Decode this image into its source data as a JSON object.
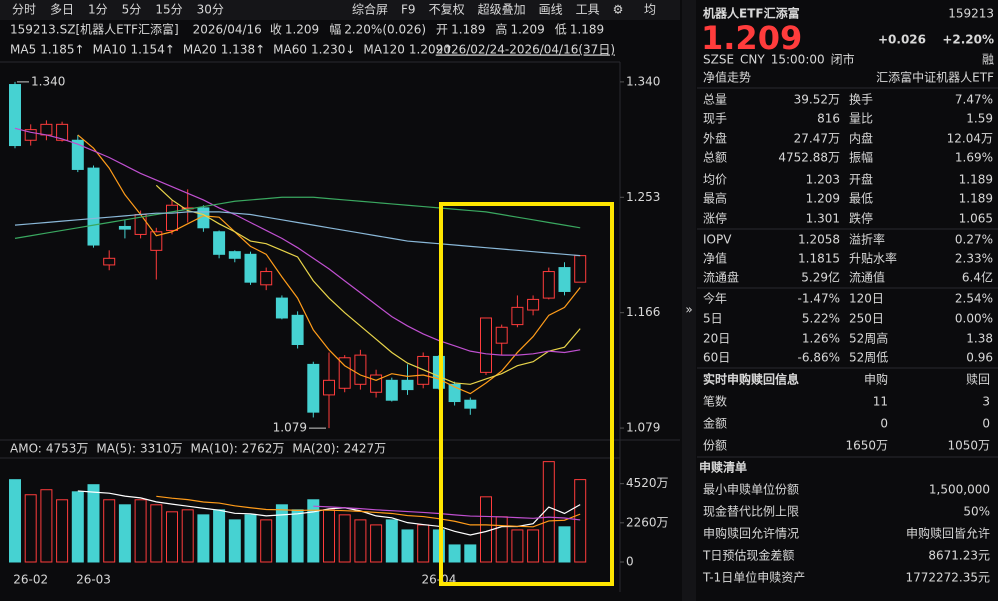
{
  "toolbar": {
    "left": [
      "分时",
      "多日",
      "1分",
      "5分",
      "15分",
      "30分"
    ],
    "right": [
      "综合屏",
      "F9",
      "不复权",
      "超级叠加",
      "画线",
      "工具"
    ],
    "end": "均"
  },
  "info_line": {
    "symbol": "159213.SZ[机器人ETF汇添富]",
    "date": "2026/04/16",
    "items": [
      [
        "收",
        "1.209"
      ],
      [
        "幅",
        "2.20%(0.026)"
      ],
      [
        "开",
        "1.189"
      ],
      [
        "高",
        "1.209"
      ],
      [
        "低",
        "1.189"
      ]
    ]
  },
  "chart_data": [
    {
      "type": "candlestick",
      "range_label": "2026/02/24-2026/04/16(37日)",
      "max_label": "1.340",
      "min_label": "1.079",
      "up_color": "#ff3c3c",
      "down_color": "#46d2d2",
      "ylim": [
        1.07,
        1.355
      ],
      "yticks": [
        {
          "value": 1.34,
          "label": "1.340"
        },
        1.253,
        1.166,
        1.079
      ],
      "open": [
        1.338,
        1.296,
        1.3,
        1.296,
        1.296,
        1.275,
        1.202,
        1.231,
        1.225,
        1.213,
        1.228,
        1.245,
        1.245,
        1.227,
        1.212,
        1.21,
        1.187,
        1.177,
        1.164,
        1.127,
        1.104,
        1.109,
        1.112,
        1.106,
        1.115,
        1.115,
        1.112,
        1.133,
        1.112,
        1.1,
        1.121,
        1.143,
        1.157,
        1.168,
        1.177,
        1.2,
        1.189
      ],
      "high": [
        1.34,
        1.308,
        1.311,
        1.31,
        1.3,
        1.277,
        1.213,
        1.236,
        1.243,
        1.23,
        1.251,
        1.259,
        1.247,
        1.228,
        1.213,
        1.212,
        1.2,
        1.179,
        1.167,
        1.129,
        1.136,
        1.134,
        1.138,
        1.123,
        1.117,
        1.127,
        1.136,
        1.134,
        1.114,
        1.102,
        1.162,
        1.157,
        1.179,
        1.179,
        1.2,
        1.204,
        1.209
      ],
      "low": [
        1.29,
        1.292,
        1.296,
        1.295,
        1.272,
        1.215,
        1.198,
        1.222,
        1.222,
        1.191,
        1.225,
        1.234,
        1.227,
        1.207,
        1.204,
        1.187,
        1.183,
        1.161,
        1.139,
        1.087,
        1.079,
        1.106,
        1.108,
        1.102,
        1.099,
        1.104,
        1.109,
        1.108,
        1.096,
        1.089,
        1.119,
        1.134,
        1.155,
        1.164,
        1.176,
        1.179,
        1.189
      ],
      "close": [
        1.292,
        1.304,
        1.308,
        1.308,
        1.274,
        1.217,
        1.207,
        1.229,
        1.24,
        1.227,
        1.247,
        1.245,
        1.23,
        1.21,
        1.207,
        1.189,
        1.197,
        1.162,
        1.142,
        1.091,
        1.115,
        1.132,
        1.134,
        1.119,
        1.1,
        1.108,
        1.133,
        1.109,
        1.099,
        1.094,
        1.162,
        1.155,
        1.17,
        1.176,
        1.197,
        1.182,
        1.209
      ],
      "series": [
        {
          "name": "MA5",
          "label": "1.185↑",
          "color": "#ff9c1a",
          "values": [
            null,
            null,
            null,
            null,
            1.3,
            1.29,
            1.275,
            1.255,
            1.24,
            1.224,
            1.227,
            1.233,
            1.239,
            1.238,
            1.227,
            1.216,
            1.21,
            1.193,
            1.177,
            1.153,
            1.138,
            1.126,
            1.119,
            1.115,
            1.12,
            1.118,
            1.119,
            1.116,
            1.11,
            1.105,
            1.113,
            1.122,
            1.136,
            1.148,
            1.164,
            1.17,
            1.185
          ]
        },
        {
          "name": "MA10",
          "label": "1.154↑",
          "color": "#e8d44a",
          "values": [
            null,
            null,
            null,
            null,
            null,
            null,
            null,
            null,
            null,
            1.262,
            1.251,
            1.243,
            1.24,
            1.233,
            1.227,
            1.22,
            1.218,
            1.213,
            1.208,
            1.19,
            1.177,
            1.166,
            1.156,
            1.146,
            1.136,
            1.128,
            1.123,
            1.118,
            1.113,
            1.112,
            1.116,
            1.12,
            1.126,
            1.129,
            1.137,
            1.14,
            1.154
          ]
        },
        {
          "name": "MA20",
          "label": "1.138↑",
          "color": "#c050d0",
          "values": [
            1.305,
            1.302,
            1.3,
            1.297,
            1.293,
            1.288,
            1.283,
            1.277,
            1.271,
            1.266,
            1.261,
            1.256,
            1.251,
            1.245,
            1.24,
            1.234,
            1.228,
            1.222,
            1.215,
            1.207,
            1.199,
            1.19,
            1.181,
            1.172,
            1.163,
            1.156,
            1.15,
            1.145,
            1.141,
            1.137,
            1.135,
            1.134,
            1.134,
            1.135,
            1.137,
            1.136,
            1.138
          ]
        },
        {
          "name": "MA60",
          "label": "1.230↓",
          "color": "#3aa860",
          "values": [
            1.222,
            1.224,
            1.226,
            1.228,
            1.23,
            1.232,
            1.234,
            1.236,
            1.238,
            1.24,
            1.242,
            1.244,
            1.246,
            1.248,
            1.25,
            1.251,
            1.252,
            1.253,
            1.253,
            1.253,
            1.252,
            1.251,
            1.25,
            1.249,
            1.248,
            1.247,
            1.246,
            1.245,
            1.244,
            1.243,
            1.242,
            1.24,
            1.238,
            1.236,
            1.234,
            1.232,
            1.23
          ]
        },
        {
          "name": "MA120",
          "label": "1.209↑",
          "color": "#8ab8d8",
          "values": [
            1.232,
            1.233,
            1.234,
            1.235,
            1.236,
            1.237,
            1.238,
            1.239,
            1.24,
            1.241,
            1.241,
            1.242,
            1.242,
            1.242,
            1.241,
            1.24,
            1.238,
            1.236,
            1.234,
            1.232,
            1.23,
            1.228,
            1.226,
            1.224,
            1.222,
            1.22,
            1.219,
            1.218,
            1.217,
            1.216,
            1.215,
            1.214,
            1.213,
            1.212,
            1.211,
            1.21,
            1.209
          ]
        }
      ]
    },
    {
      "type": "bar",
      "ylim": [
        0,
        6000
      ],
      "yticks": [
        {
          "value": 4520,
          "label": "4520万"
        },
        {
          "value": 2260,
          "label": "2260万"
        },
        0
      ],
      "amo_name": "AMO:",
      "amo_label": "4753万",
      "categories": [
        null,
        "26-02",
        null,
        null,
        null,
        "26-03",
        null,
        null,
        null,
        null,
        null,
        null,
        null,
        null,
        null,
        null,
        null,
        null,
        null,
        null,
        null,
        null,
        null,
        null,
        null,
        null,
        null,
        "26-04",
        null,
        null,
        null,
        null,
        null,
        null,
        null,
        null,
        null
      ],
      "values": [
        4750,
        3880,
        4170,
        3590,
        4050,
        4460,
        3590,
        3300,
        3590,
        3300,
        2895,
        3010,
        2720,
        3010,
        2430,
        2720,
        2430,
        3300,
        3010,
        3590,
        3010,
        2720,
        2430,
        2140,
        2430,
        1850,
        2140,
        1850,
        985,
        985,
        3760,
        2610,
        1850,
        1850,
        5790,
        2030,
        4753
      ],
      "series": [
        {
          "name": "MA(5):",
          "label": "3310万",
          "color": "#ffffff",
          "values": [
            null,
            null,
            null,
            null,
            4100,
            4030,
            3970,
            3800,
            3700,
            3470,
            3340,
            3220,
            3100,
            2990,
            2810,
            2780,
            2660,
            2720,
            2780,
            2890,
            3070,
            3130,
            2950,
            2660,
            2550,
            2270,
            2160,
            2060,
            1770,
            1560,
            1760,
            2040,
            2050,
            2210,
            3170,
            2800,
            3310
          ]
        },
        {
          "name": "MA(10):",
          "label": "2762万",
          "color": "#ff9c1a",
          "values": [
            null,
            null,
            null,
            null,
            null,
            null,
            null,
            null,
            null,
            3790,
            3680,
            3600,
            3460,
            3400,
            3240,
            3130,
            3030,
            3010,
            2980,
            2990,
            2990,
            2960,
            2920,
            2860,
            2800,
            2680,
            2620,
            2500,
            2350,
            2140,
            2140,
            2100,
            2060,
            2030,
            2370,
            2410,
            2762
          ]
        },
        {
          "name": "MA(20):",
          "label": "2427万",
          "color": "#c050d0",
          "values": [
            null,
            null,
            null,
            null,
            null,
            null,
            null,
            null,
            null,
            null,
            null,
            null,
            null,
            null,
            null,
            null,
            null,
            null,
            null,
            3220,
            3180,
            3130,
            3080,
            3010,
            2960,
            2910,
            2860,
            2800,
            2720,
            2650,
            2630,
            2600,
            2560,
            2520,
            2590,
            2540,
            2427
          ]
        }
      ]
    }
  ],
  "panel": {
    "name": "机器人ETF汇添富",
    "code": "159213",
    "price": "1.209",
    "change": "+0.026",
    "pct": "+2.20%",
    "meta": [
      "SZSE",
      "CNY",
      "15:00:00",
      "闭市"
    ],
    "badge": "融",
    "nav_title": "净值走势",
    "nav_fund": "汇添富中证机器人ETF",
    "stats": [
      {
        "cells": [
          "总量",
          "39.52万",
          "换手",
          "7.47%"
        ],
        "colors": [
          "#e6e6e6",
          "#e6e6e6"
        ]
      },
      {
        "cells": [
          "现手",
          "816",
          "量比",
          "1.59"
        ],
        "colors": [
          "#e6e6e6",
          "#e6e6e6"
        ]
      },
      {
        "cells": [
          "外盘",
          "27.47万",
          "内盘",
          "12.04万"
        ],
        "colors": [
          "#ff3c3c",
          "#26c826"
        ]
      },
      {
        "cells": [
          "总额",
          "4752.88万",
          "振幅",
          "1.69%"
        ],
        "colors": [
          "#e6e6e6",
          "#e6e6e6"
        ]
      },
      {
        "cells": [
          "均价",
          "1.203",
          "开盘",
          "1.189"
        ],
        "colors": [
          "#ff3c3c",
          "#ff3c3c"
        ]
      },
      {
        "cells": [
          "最高",
          "1.209",
          "最低",
          "1.189"
        ],
        "colors": [
          "#ff3c3c",
          "#ff3c3c"
        ]
      },
      {
        "cells": [
          "涨停",
          "1.301",
          "跌停",
          "1.065"
        ],
        "colors": [
          "#ff3c3c",
          "#26c826"
        ]
      },
      {
        "cells": [
          "IOPV",
          "1.2058",
          "溢折率",
          "0.27%"
        ],
        "colors": [
          "#e6e6e6",
          "#ff3c3c"
        ]
      },
      {
        "cells": [
          "净值",
          "1.1815",
          "升贴水率",
          "2.33%"
        ],
        "colors": [
          "#26c826",
          "#ff3c3c"
        ]
      },
      {
        "cells": [
          "流通盘",
          "5.29亿",
          "流通值",
          "6.4亿"
        ],
        "colors": [
          "#e6e6e6",
          "#e6e6e6"
        ]
      },
      {
        "cells": [
          "今年",
          "-1.47%",
          "120日",
          "2.54%"
        ],
        "colors": [
          "#26c826",
          "#ff3c3c"
        ]
      },
      {
        "cells": [
          "5日",
          "5.22%",
          "250日",
          "0.00%"
        ],
        "colors": [
          "#ff3c3c",
          "#e6e6e6"
        ]
      },
      {
        "cells": [
          "20日",
          "1.26%",
          "52周高",
          "1.38"
        ],
        "colors": [
          "#ff3c3c",
          "#e6e6e6"
        ]
      },
      {
        "cells": [
          "60日",
          "-6.86%",
          "52周低",
          "0.96"
        ],
        "colors": [
          "#26c826",
          "#e6e6e6"
        ]
      }
    ],
    "subscription": {
      "title": "实时申购赎回信息",
      "cols": [
        "申购",
        "赎回"
      ],
      "rows": [
        [
          "笔数",
          "11",
          "3"
        ],
        [
          "金额",
          "0",
          "0"
        ],
        [
          "份额",
          "1650万",
          "1050万"
        ]
      ]
    },
    "list": {
      "title": "申赎清单",
      "rows": [
        [
          "最小申赎单位份额",
          "1,500,000"
        ],
        [
          "现金替代比例上限",
          "50%"
        ],
        [
          "申购赎回允许情况",
          "申购赎回皆允许"
        ],
        [
          "T日预估现金差额",
          "8671.23元"
        ],
        [
          "T-1日单位申赎资产",
          "1772272.35元"
        ]
      ]
    }
  }
}
